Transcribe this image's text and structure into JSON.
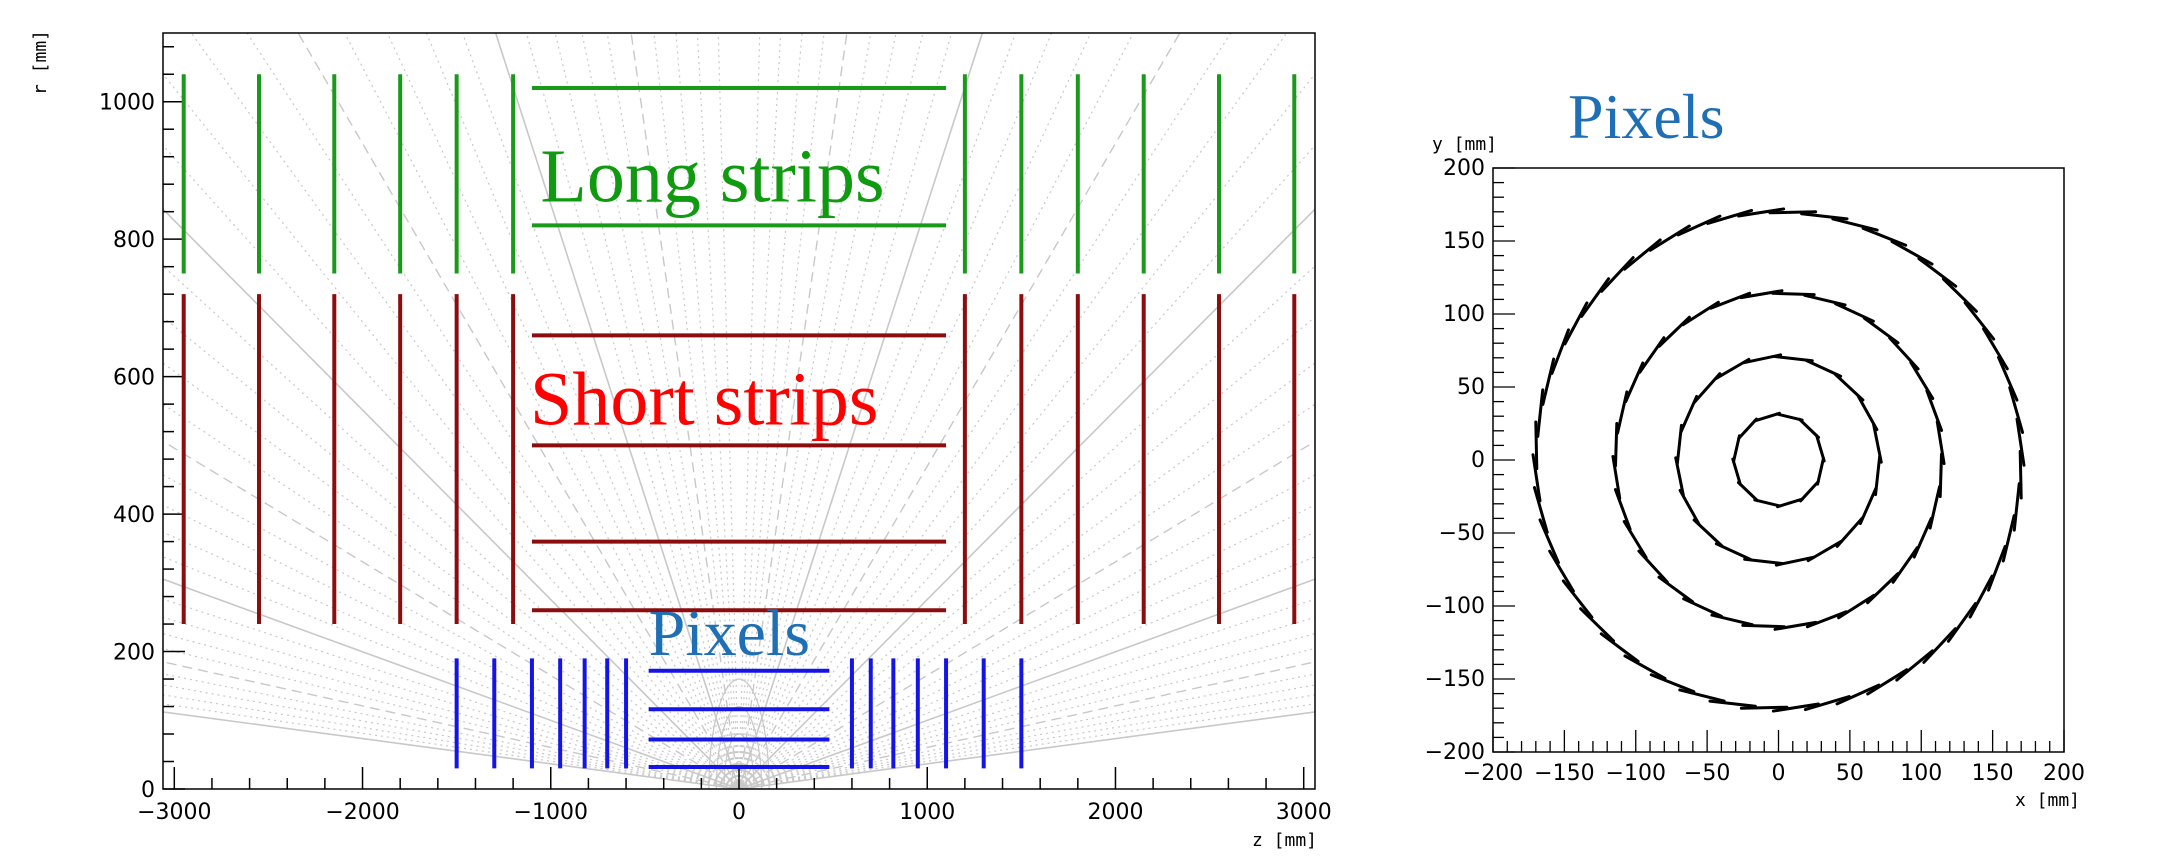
{
  "chart_data": [
    {
      "type": "scatter",
      "title": "",
      "xlabel": "z [mm]",
      "ylabel": "r [mm]",
      "xlim": [
        -3060,
        3060
      ],
      "ylim": [
        0,
        1100
      ],
      "x_ticks": [
        -3000,
        -2000,
        -1000,
        0,
        1000,
        2000,
        3000
      ],
      "y_ticks": [
        0,
        200,
        400,
        600,
        800,
        1000
      ],
      "labels": {
        "long": "Long strips",
        "short": "Short strips",
        "pixels": "Pixels"
      },
      "colors": {
        "long": "#1a9a1a",
        "short": "#8b0d0d",
        "pixels": "#1414e6",
        "long_text": "#0f9a0f",
        "short_text": "#ff0000",
        "pixels_text": "#1e6fb5",
        "guide": "#c8c8c8"
      },
      "long_barrels": {
        "r": [
          1020,
          820
        ],
        "z": [
          -1100,
          1100
        ]
      },
      "long_endcaps": {
        "z": [
          -2950,
          -2550,
          -2150,
          -1800,
          -1500,
          -1200,
          1200,
          1500,
          1800,
          2150,
          2550,
          2950
        ],
        "r": [
          750,
          1040
        ]
      },
      "short_barrels": {
        "r": [
          660,
          500,
          360,
          260
        ],
        "z": [
          -1100,
          1100
        ]
      },
      "short_endcaps": {
        "z": [
          -2950,
          -2550,
          -2150,
          -1800,
          -1500,
          -1200,
          1200,
          1500,
          1800,
          2150,
          2550,
          2950
        ],
        "r": [
          240,
          720
        ]
      },
      "pixel_barrels": {
        "r": [
          172,
          116,
          72,
          32
        ],
        "z": [
          -480,
          480
        ]
      },
      "pixel_endcaps": {
        "z": [
          -1500,
          -1300,
          -1100,
          -950,
          -820,
          -700,
          -600,
          600,
          700,
          820,
          950,
          1100,
          1300,
          1500
        ],
        "r": [
          30,
          190
        ]
      }
    },
    {
      "type": "scatter",
      "title": "Pixels",
      "xlabel": "x [mm]",
      "ylabel": "y [mm]",
      "xlim": [
        -200,
        200
      ],
      "ylim": [
        -200,
        200
      ],
      "x_ticks": [
        -200,
        -150,
        -100,
        -50,
        0,
        50,
        100,
        150,
        200
      ],
      "y_ticks": [
        -200,
        -150,
        -100,
        -50,
        0,
        50,
        100,
        150,
        200
      ],
      "rings": [
        {
          "radius": 172,
          "modules": 48
        },
        {
          "radius": 116,
          "modules": 32
        },
        {
          "radius": 72,
          "modules": 20
        },
        {
          "radius": 32,
          "modules": 12
        }
      ],
      "colors": {
        "ring": "#000000",
        "title": "#1e6fb5"
      }
    }
  ]
}
